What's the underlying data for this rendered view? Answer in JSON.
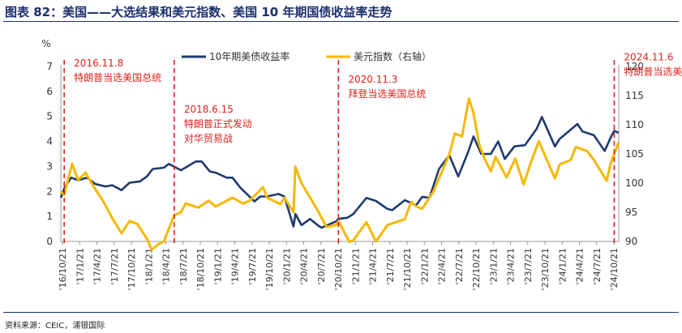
{
  "header": {
    "title": "图表 82：美国——大选结果和美元指数、美国 10 年期国债收益率走势"
  },
  "footer": {
    "source": "资料来源：CEIC，浦银国际"
  },
  "chart_data": {
    "type": "line",
    "y_unit_label": "%",
    "x": [
      "'16/10/21",
      "'17/1/21",
      "'17/4/21",
      "'17/7/21",
      "'17/10/21",
      "'18/1/21",
      "'18/4/21",
      "'18/7/21",
      "'18/10/21",
      "'19/1/21",
      "'19/4/21",
      "'19/7/21",
      "'19/10/21",
      "'20/1/21",
      "'20/4/21",
      "'20/7/21",
      "'20/10/21",
      "'21/1/21",
      "'21/4/21",
      "'21/7/21",
      "'21/10/21",
      "'22/1/21",
      "'22/4/21",
      "'22/7/21",
      "'22/10/21",
      "'23/1/21",
      "'23/4/21",
      "'23/7/21",
      "'23/10/21",
      "'24/1/21",
      "'24/4/21",
      "'24/7/21",
      "'24/10/21"
    ],
    "x_range": [
      "2016-10-21",
      "2024-11-30"
    ],
    "ylim_left": [
      0,
      7
    ],
    "yticks_left": [
      0,
      1,
      2,
      3,
      4,
      5,
      6,
      7
    ],
    "ylim_right": [
      90,
      120
    ],
    "yticks_right": [
      90,
      95,
      100,
      105,
      110,
      115,
      120
    ],
    "grid": false,
    "legend_position": "top-center",
    "series": [
      {
        "name": "10年期美债收益率",
        "axis": "left",
        "color": "#1f3a6e",
        "points": [
          [
            "2016-10-21",
            1.75
          ],
          [
            "2016-11-10",
            2.15
          ],
          [
            "2016-12-15",
            2.55
          ],
          [
            "2017-01-21",
            2.45
          ],
          [
            "2017-03-10",
            2.55
          ],
          [
            "2017-04-21",
            2.3
          ],
          [
            "2017-06-15",
            2.2
          ],
          [
            "2017-07-21",
            2.25
          ],
          [
            "2017-09-08",
            2.05
          ],
          [
            "2017-10-21",
            2.35
          ],
          [
            "2017-12-15",
            2.4
          ],
          [
            "2018-01-21",
            2.6
          ],
          [
            "2018-02-21",
            2.9
          ],
          [
            "2018-04-21",
            2.95
          ],
          [
            "2018-05-17",
            3.1
          ],
          [
            "2018-07-21",
            2.85
          ],
          [
            "2018-10-08",
            3.2
          ],
          [
            "2018-11-08",
            3.2
          ],
          [
            "2018-12-21",
            2.8
          ],
          [
            "2019-01-21",
            2.75
          ],
          [
            "2019-03-21",
            2.55
          ],
          [
            "2019-04-21",
            2.55
          ],
          [
            "2019-06-01",
            2.15
          ],
          [
            "2019-08-15",
            1.6
          ],
          [
            "2019-09-15",
            1.8
          ],
          [
            "2019-10-21",
            1.8
          ],
          [
            "2019-12-21",
            1.9
          ],
          [
            "2020-01-21",
            1.8
          ],
          [
            "2020-03-09",
            0.6
          ],
          [
            "2020-03-20",
            1.1
          ],
          [
            "2020-04-21",
            0.65
          ],
          [
            "2020-06-05",
            0.9
          ],
          [
            "2020-07-21",
            0.62
          ],
          [
            "2020-08-05",
            0.55
          ],
          [
            "2020-10-21",
            0.8
          ],
          [
            "2020-11-03",
            0.9
          ],
          [
            "2020-12-21",
            0.95
          ],
          [
            "2021-01-21",
            1.1
          ],
          [
            "2021-03-31",
            1.74
          ],
          [
            "2021-05-21",
            1.62
          ],
          [
            "2021-07-21",
            1.3
          ],
          [
            "2021-08-15",
            1.25
          ],
          [
            "2021-10-21",
            1.65
          ],
          [
            "2021-12-21",
            1.45
          ],
          [
            "2022-01-21",
            1.78
          ],
          [
            "2022-03-01",
            1.75
          ],
          [
            "2022-04-21",
            2.9
          ],
          [
            "2022-06-14",
            3.45
          ],
          [
            "2022-08-01",
            2.6
          ],
          [
            "2022-09-21",
            3.55
          ],
          [
            "2022-10-21",
            4.2
          ],
          [
            "2022-12-01",
            3.5
          ],
          [
            "2023-01-21",
            3.5
          ],
          [
            "2023-03-01",
            4.0
          ],
          [
            "2023-04-05",
            3.3
          ],
          [
            "2023-05-26",
            3.8
          ],
          [
            "2023-07-21",
            3.85
          ],
          [
            "2023-09-21",
            4.5
          ],
          [
            "2023-10-19",
            4.98
          ],
          [
            "2023-12-27",
            3.8
          ],
          [
            "2024-01-21",
            4.1
          ],
          [
            "2024-04-25",
            4.7
          ],
          [
            "2024-05-21",
            4.4
          ],
          [
            "2024-07-21",
            4.25
          ],
          [
            "2024-09-16",
            3.62
          ],
          [
            "2024-10-21",
            4.2
          ],
          [
            "2024-11-06",
            4.42
          ],
          [
            "2024-11-29",
            4.35
          ]
        ]
      },
      {
        "name": "美元指数（右轴）",
        "axis": "right",
        "color": "#f5b800",
        "points": [
          [
            "2016-10-21",
            98.5
          ],
          [
            "2016-11-08",
            98.0
          ],
          [
            "2016-12-20",
            103.3
          ],
          [
            "2017-01-21",
            100.5
          ],
          [
            "2017-03-01",
            101.8
          ],
          [
            "2017-04-21",
            99.0
          ],
          [
            "2017-06-01",
            97.0
          ],
          [
            "2017-07-21",
            94.0
          ],
          [
            "2017-09-08",
            91.4
          ],
          [
            "2017-10-21",
            93.5
          ],
          [
            "2017-12-01",
            93.0
          ],
          [
            "2018-01-21",
            90.5
          ],
          [
            "2018-02-15",
            88.6
          ],
          [
            "2018-03-21",
            89.5
          ],
          [
            "2018-04-21",
            90.0
          ],
          [
            "2018-06-15",
            94.5
          ],
          [
            "2018-07-21",
            95.0
          ],
          [
            "2018-08-15",
            96.5
          ],
          [
            "2018-10-21",
            95.8
          ],
          [
            "2018-12-15",
            97.0
          ],
          [
            "2019-01-21",
            96.0
          ],
          [
            "2019-04-21",
            97.5
          ],
          [
            "2019-06-15",
            96.5
          ],
          [
            "2019-07-21",
            97.0
          ],
          [
            "2019-09-30",
            99.3
          ],
          [
            "2019-10-21",
            97.5
          ],
          [
            "2019-12-31",
            96.4
          ],
          [
            "2020-01-21",
            97.5
          ],
          [
            "2020-03-09",
            95.0
          ],
          [
            "2020-03-19",
            102.8
          ],
          [
            "2020-04-21",
            100.0
          ],
          [
            "2020-06-15",
            97.0
          ],
          [
            "2020-07-21",
            95.0
          ],
          [
            "2020-08-31",
            92.5
          ],
          [
            "2020-10-21",
            92.8
          ],
          [
            "2020-11-03",
            93.5
          ],
          [
            "2020-12-31",
            89.9
          ],
          [
            "2021-01-21",
            90.2
          ],
          [
            "2021-03-31",
            93.3
          ],
          [
            "2021-05-21",
            90.0
          ],
          [
            "2021-07-21",
            92.8
          ],
          [
            "2021-10-21",
            93.8
          ],
          [
            "2021-11-24",
            96.8
          ],
          [
            "2021-12-21",
            96.0
          ],
          [
            "2022-01-21",
            95.6
          ],
          [
            "2022-03-21",
            98.5
          ],
          [
            "2022-04-21",
            100.8
          ],
          [
            "2022-06-15",
            105.0
          ],
          [
            "2022-07-14",
            108.5
          ],
          [
            "2022-08-21",
            108.0
          ],
          [
            "2022-09-27",
            114.5
          ],
          [
            "2022-10-21",
            112.0
          ],
          [
            "2022-11-21",
            106.5
          ],
          [
            "2022-12-21",
            104.0
          ],
          [
            "2023-01-21",
            102.0
          ],
          [
            "2023-02-15",
            104.5
          ],
          [
            "2023-04-14",
            101.0
          ],
          [
            "2023-05-31",
            104.2
          ],
          [
            "2023-07-14",
            99.8
          ],
          [
            "2023-08-21",
            103.5
          ],
          [
            "2023-10-03",
            107.2
          ],
          [
            "2023-11-21",
            103.5
          ],
          [
            "2023-12-27",
            100.8
          ],
          [
            "2024-01-21",
            103.2
          ],
          [
            "2024-03-21",
            104.0
          ],
          [
            "2024-04-16",
            106.2
          ],
          [
            "2024-06-15",
            105.5
          ],
          [
            "2024-07-21",
            104.0
          ],
          [
            "2024-09-27",
            100.4
          ],
          [
            "2024-10-15",
            103.0
          ],
          [
            "2024-11-06",
            105.0
          ],
          [
            "2024-11-29",
            107.0
          ]
        ]
      }
    ],
    "annotations": [
      {
        "date": "2016-11-08",
        "lines": [
          "2016.11.8",
          "特朗普当选美国总统"
        ],
        "label_y": 7.0
      },
      {
        "date": "2018-06-15",
        "lines": [
          "2018.6.15",
          "特朗普正式发动",
          "对华贸易战"
        ],
        "label_y": 5.15
      },
      {
        "date": "2020-11-03",
        "lines": [
          "2020.11.3",
          "拜登当选美国总统"
        ],
        "label_y": 6.35
      },
      {
        "date": "2024-11-06",
        "lines": [
          "2024.11.6",
          "特朗普当选美国总统"
        ],
        "label_y": 7.25
      }
    ]
  }
}
